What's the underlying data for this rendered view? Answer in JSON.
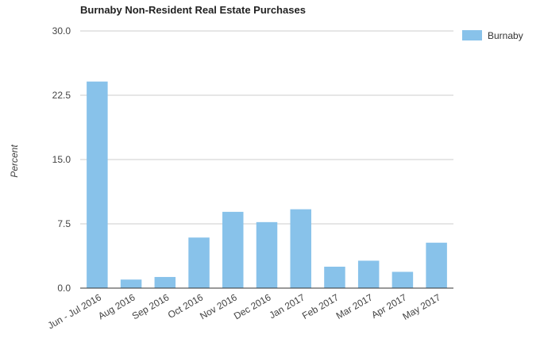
{
  "chart_data": {
    "type": "bar",
    "title": "Burnaby Non-Resident Real Estate Purchases",
    "xlabel": "",
    "ylabel": "Percent",
    "categories": [
      "Jun - Jul 2016",
      "Aug 2016",
      "Sep 2016",
      "Oct 2016",
      "Nov 2016",
      "Dec 2016",
      "Jan 2017",
      "Feb 2017",
      "Mar 2017",
      "Apr 2017",
      "May 2017"
    ],
    "series": [
      {
        "name": "Burnaby",
        "values": [
          24.1,
          1.0,
          1.3,
          5.9,
          8.9,
          7.7,
          9.2,
          2.5,
          3.2,
          1.9,
          5.3
        ]
      }
    ],
    "ylim": [
      0,
      30
    ],
    "yticks": [
      "0.0",
      "7.5",
      "15.0",
      "22.5",
      "30.0"
    ],
    "grid": true,
    "legend_position": "right",
    "colors": {
      "bar": "#88c2ea",
      "grid": "#cccccc",
      "axis": "#333333",
      "text": "#444444",
      "title": "#222222"
    }
  }
}
